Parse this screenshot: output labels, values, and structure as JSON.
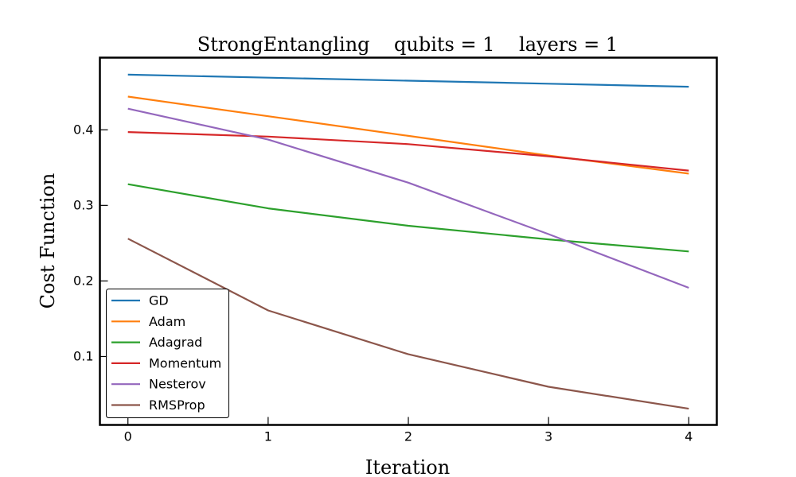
{
  "chart_data": {
    "type": "line",
    "title": "StrongEntangling    qubits = 1    layers = 1",
    "xlabel": "Iteration",
    "ylabel": "Cost Function",
    "x": [
      0,
      1,
      2,
      3,
      4
    ],
    "xticks": [
      "0",
      "1",
      "2",
      "3",
      "4"
    ],
    "yticks": [
      "0.1",
      "0.2",
      "0.3",
      "0.4"
    ],
    "xlim": [
      -0.2,
      4.2
    ],
    "ylim": [
      0.0095,
      0.4955
    ],
    "grid": false,
    "legend_position": "lower-left",
    "series": [
      {
        "name": "GD",
        "color": "#1f77b4",
        "values": [
          0.473,
          0.469,
          0.465,
          0.461,
          0.457
        ]
      },
      {
        "name": "Adam",
        "color": "#ff7f0e",
        "values": [
          0.444,
          0.418,
          0.392,
          0.366,
          0.342
        ]
      },
      {
        "name": "Adagrad",
        "color": "#2ca02c",
        "values": [
          0.328,
          0.296,
          0.273,
          0.255,
          0.239
        ]
      },
      {
        "name": "Momentum",
        "color": "#d62728",
        "values": [
          0.397,
          0.391,
          0.381,
          0.365,
          0.346
        ]
      },
      {
        "name": "Nesterov",
        "color": "#9467bd",
        "values": [
          0.428,
          0.387,
          0.33,
          0.262,
          0.191
        ]
      },
      {
        "name": "RMSProp",
        "color": "#8c564b",
        "values": [
          0.256,
          0.161,
          0.103,
          0.06,
          0.031
        ]
      }
    ]
  }
}
